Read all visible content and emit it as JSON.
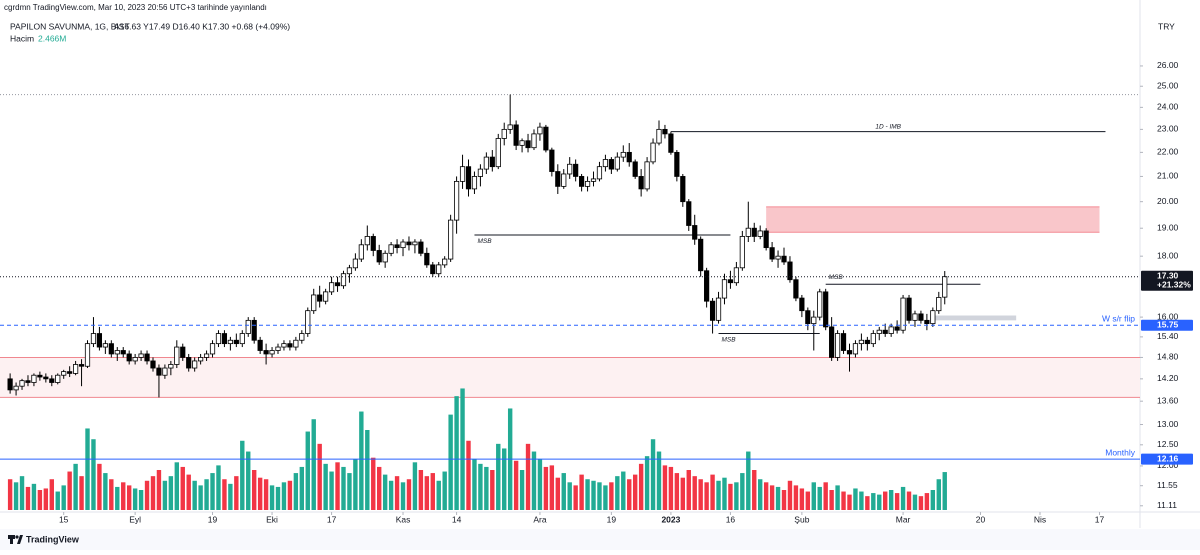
{
  "header": {
    "publisher": "cgrdmn TradingView.com, Mar 10, 2023 20:56 UTC+3 tarihinde yayınlandı",
    "symbol": "PAPILON SAVUNMA, 1G, BIST",
    "ohlc_text": "A16.63 Y17.49 D16.40 K17.30 +0.68 (+4.09%)",
    "volume_label": "Hacim",
    "volume_value": "2.466M",
    "currency": "TRY"
  },
  "chart_data": {
    "type": "candlestick",
    "log_scale": true,
    "up_color": "#ffffff",
    "down_color": "#000000",
    "ohlc": [
      [
        14.2,
        14.35,
        13.8,
        13.9
      ],
      [
        13.9,
        14.1,
        13.75,
        14.0
      ],
      [
        14.0,
        14.2,
        13.9,
        14.15
      ],
      [
        14.15,
        14.3,
        14.0,
        14.1
      ],
      [
        14.1,
        14.35,
        14.0,
        14.3
      ],
      [
        14.3,
        14.4,
        14.15,
        14.25
      ],
      [
        14.25,
        14.35,
        14.1,
        14.2
      ],
      [
        14.2,
        14.3,
        14.0,
        14.1
      ],
      [
        14.1,
        14.35,
        14.05,
        14.3
      ],
      [
        14.3,
        14.45,
        14.2,
        14.4
      ],
      [
        14.4,
        14.55,
        14.25,
        14.35
      ],
      [
        14.35,
        14.7,
        14.3,
        14.6
      ],
      [
        14.6,
        14.75,
        14.0,
        14.55
      ],
      [
        14.55,
        15.3,
        14.5,
        15.2
      ],
      [
        15.2,
        16.0,
        15.1,
        15.5
      ],
      [
        15.5,
        15.7,
        15.0,
        15.1
      ],
      [
        15.1,
        15.3,
        14.9,
        15.2
      ],
      [
        15.2,
        15.3,
        14.8,
        14.9
      ],
      [
        14.9,
        15.1,
        14.7,
        15.0
      ],
      [
        15.0,
        15.1,
        14.8,
        14.9
      ],
      [
        14.9,
        15.0,
        14.6,
        14.7
      ],
      [
        14.7,
        14.9,
        14.6,
        14.8
      ],
      [
        14.8,
        15.0,
        14.7,
        14.9
      ],
      [
        14.9,
        15.0,
        14.6,
        14.7
      ],
      [
        14.7,
        14.8,
        14.4,
        14.5
      ],
      [
        14.5,
        14.6,
        13.7,
        14.3
      ],
      [
        14.3,
        14.6,
        14.2,
        14.5
      ],
      [
        14.5,
        14.7,
        14.3,
        14.6
      ],
      [
        14.6,
        15.3,
        14.5,
        15.1
      ],
      [
        15.1,
        15.2,
        14.7,
        14.8
      ],
      [
        14.8,
        14.9,
        14.4,
        14.5
      ],
      [
        14.5,
        14.8,
        14.4,
        14.7
      ],
      [
        14.7,
        14.9,
        14.6,
        14.8
      ],
      [
        14.8,
        15.0,
        14.7,
        14.9
      ],
      [
        14.9,
        15.3,
        14.8,
        15.2
      ],
      [
        15.2,
        15.6,
        15.1,
        15.5
      ],
      [
        15.5,
        15.6,
        15.1,
        15.2
      ],
      [
        15.2,
        15.4,
        15.0,
        15.3
      ],
      [
        15.3,
        15.5,
        15.1,
        15.2
      ],
      [
        15.2,
        15.6,
        15.1,
        15.5
      ],
      [
        15.5,
        16.0,
        15.4,
        15.9
      ],
      [
        15.9,
        16.0,
        15.2,
        15.3
      ],
      [
        15.3,
        15.4,
        14.9,
        15.0
      ],
      [
        15.0,
        15.2,
        14.6,
        14.9
      ],
      [
        14.9,
        15.1,
        14.8,
        15.0
      ],
      [
        15.0,
        15.2,
        14.9,
        15.1
      ],
      [
        15.1,
        15.3,
        15.0,
        15.2
      ],
      [
        15.2,
        15.3,
        15.0,
        15.1
      ],
      [
        15.1,
        15.4,
        15.0,
        15.3
      ],
      [
        15.3,
        15.6,
        15.2,
        15.5
      ],
      [
        15.5,
        16.3,
        15.4,
        16.2
      ],
      [
        16.2,
        16.9,
        16.1,
        16.7
      ],
      [
        16.7,
        17.0,
        16.3,
        16.5
      ],
      [
        16.5,
        16.9,
        16.4,
        16.8
      ],
      [
        16.8,
        17.3,
        16.7,
        17.1
      ],
      [
        17.1,
        17.3,
        16.8,
        17.0
      ],
      [
        17.0,
        17.5,
        16.9,
        17.4
      ],
      [
        17.4,
        17.7,
        17.1,
        17.6
      ],
      [
        17.6,
        18.1,
        17.5,
        17.9
      ],
      [
        17.9,
        18.6,
        17.8,
        18.4
      ],
      [
        18.4,
        19.1,
        18.2,
        18.7
      ],
      [
        18.7,
        18.8,
        18.0,
        18.2
      ],
      [
        18.2,
        18.4,
        17.7,
        17.8
      ],
      [
        17.8,
        18.2,
        17.6,
        18.1
      ],
      [
        18.1,
        18.5,
        18.0,
        18.4
      ],
      [
        18.4,
        18.6,
        18.1,
        18.3
      ],
      [
        18.3,
        18.6,
        18.0,
        18.5
      ],
      [
        18.5,
        18.7,
        18.2,
        18.4
      ],
      [
        18.4,
        18.6,
        18.1,
        18.5
      ],
      [
        18.5,
        18.6,
        18.0,
        18.1
      ],
      [
        18.1,
        18.3,
        17.6,
        17.7
      ],
      [
        17.7,
        17.8,
        17.3,
        17.4
      ],
      [
        17.4,
        17.8,
        17.3,
        17.7
      ],
      [
        17.7,
        18.0,
        17.6,
        17.9
      ],
      [
        17.9,
        19.5,
        17.8,
        19.3
      ],
      [
        19.3,
        21.0,
        18.8,
        20.8
      ],
      [
        20.8,
        21.9,
        20.5,
        21.4
      ],
      [
        21.4,
        21.7,
        20.2,
        20.5
      ],
      [
        20.5,
        21.2,
        20.3,
        21.0
      ],
      [
        21.0,
        21.5,
        20.6,
        21.3
      ],
      [
        21.3,
        22.0,
        21.1,
        21.8
      ],
      [
        21.8,
        22.1,
        21.2,
        21.4
      ],
      [
        21.4,
        22.8,
        21.3,
        22.6
      ],
      [
        22.6,
        23.3,
        22.3,
        23.0
      ],
      [
        23.0,
        24.6,
        22.8,
        23.2
      ],
      [
        23.2,
        23.4,
        22.1,
        22.3
      ],
      [
        22.3,
        22.6,
        22.0,
        22.5
      ],
      [
        22.5,
        22.8,
        22.0,
        22.2
      ],
      [
        22.2,
        23.0,
        22.1,
        22.8
      ],
      [
        22.8,
        23.3,
        22.5,
        23.1
      ],
      [
        23.1,
        23.2,
        22.0,
        22.1
      ],
      [
        22.1,
        22.2,
        21.0,
        21.2
      ],
      [
        21.2,
        21.5,
        20.3,
        20.6
      ],
      [
        20.6,
        21.3,
        20.5,
        21.1
      ],
      [
        21.1,
        21.8,
        20.9,
        21.5
      ],
      [
        21.5,
        21.7,
        20.8,
        21.0
      ],
      [
        21.0,
        21.1,
        20.4,
        20.6
      ],
      [
        20.6,
        21.0,
        20.4,
        20.8
      ],
      [
        20.8,
        21.2,
        20.6,
        20.9
      ],
      [
        20.9,
        21.6,
        20.8,
        21.4
      ],
      [
        21.4,
        21.9,
        21.2,
        21.7
      ],
      [
        21.7,
        21.8,
        21.1,
        21.3
      ],
      [
        21.3,
        22.0,
        21.2,
        21.8
      ],
      [
        21.8,
        22.3,
        21.6,
        22.0
      ],
      [
        22.0,
        22.4,
        21.4,
        21.6
      ],
      [
        21.6,
        21.7,
        20.9,
        21.0
      ],
      [
        21.0,
        21.3,
        20.2,
        20.5
      ],
      [
        20.5,
        21.8,
        20.4,
        21.6
      ],
      [
        21.6,
        22.6,
        21.5,
        22.4
      ],
      [
        22.4,
        23.4,
        22.3,
        23.0
      ],
      [
        23.0,
        23.2,
        22.6,
        22.8
      ],
      [
        22.8,
        22.9,
        21.9,
        22.0
      ],
      [
        22.0,
        22.1,
        20.8,
        21.0
      ],
      [
        21.0,
        21.1,
        19.8,
        20.0
      ],
      [
        20.0,
        20.1,
        18.9,
        19.1
      ],
      [
        19.1,
        19.5,
        18.4,
        18.6
      ],
      [
        18.6,
        18.7,
        17.3,
        17.5
      ],
      [
        17.5,
        17.6,
        16.3,
        16.5
      ],
      [
        16.5,
        16.6,
        15.5,
        15.9
      ],
      [
        15.9,
        16.8,
        15.8,
        16.6
      ],
      [
        16.6,
        17.4,
        16.4,
        17.2
      ],
      [
        17.2,
        17.5,
        16.9,
        17.1
      ],
      [
        17.1,
        17.8,
        17.0,
        17.6
      ],
      [
        17.6,
        18.9,
        17.5,
        18.7
      ],
      [
        18.7,
        20.0,
        18.5,
        19.0
      ],
      [
        19.0,
        19.2,
        18.5,
        18.7
      ],
      [
        18.7,
        19.1,
        18.6,
        18.9
      ],
      [
        18.9,
        19.0,
        18.2,
        18.3
      ],
      [
        18.3,
        18.5,
        17.8,
        17.9
      ],
      [
        17.9,
        18.2,
        17.6,
        18.0
      ],
      [
        18.0,
        18.3,
        17.7,
        17.8
      ],
      [
        17.8,
        18.0,
        17.1,
        17.2
      ],
      [
        17.2,
        17.3,
        16.5,
        16.6
      ],
      [
        16.6,
        16.7,
        16.0,
        16.2
      ],
      [
        16.2,
        16.3,
        15.6,
        15.8
      ],
      [
        15.8,
        16.2,
        15.0,
        16.0
      ],
      [
        16.0,
        16.9,
        15.9,
        16.8
      ],
      [
        16.8,
        16.9,
        15.6,
        15.7
      ],
      [
        15.7,
        16.0,
        14.7,
        14.8
      ],
      [
        14.8,
        15.6,
        14.7,
        15.5
      ],
      [
        15.5,
        15.6,
        14.9,
        15.0
      ],
      [
        15.0,
        15.2,
        14.4,
        14.9
      ],
      [
        14.9,
        15.3,
        14.8,
        15.2
      ],
      [
        15.2,
        15.5,
        15.0,
        15.3
      ],
      [
        15.3,
        15.4,
        15.0,
        15.2
      ],
      [
        15.2,
        15.6,
        15.1,
        15.5
      ],
      [
        15.5,
        15.7,
        15.3,
        15.6
      ],
      [
        15.6,
        15.8,
        15.4,
        15.5
      ],
      [
        15.5,
        15.8,
        15.4,
        15.7
      ],
      [
        15.7,
        15.9,
        15.5,
        15.6
      ],
      [
        15.6,
        16.7,
        15.5,
        16.6
      ],
      [
        16.6,
        16.7,
        15.8,
        15.9
      ],
      [
        15.9,
        16.2,
        15.7,
        16.1
      ],
      [
        16.1,
        16.2,
        15.8,
        15.9
      ],
      [
        15.9,
        16.1,
        15.6,
        15.8
      ],
      [
        15.8,
        16.3,
        15.7,
        16.2
      ],
      [
        16.2,
        16.8,
        16.1,
        16.62
      ],
      [
        16.63,
        17.49,
        16.4,
        17.3
      ]
    ],
    "volume": {
      "up_color": "#22ab94",
      "down_color": "#f23645",
      "values": [
        2.0,
        1.8,
        2.2,
        1.5,
        1.7,
        1.3,
        1.4,
        2.0,
        1.2,
        1.6,
        2.5,
        3.0,
        2.2,
        5.3,
        4.6,
        3.0,
        2.4,
        2.0,
        1.5,
        1.8,
        1.6,
        1.4,
        1.3,
        1.9,
        2.2,
        2.6,
        1.9,
        2.2,
        3.1,
        2.8,
        2.3,
        1.9,
        1.6,
        2.0,
        2.4,
        2.9,
        2.0,
        1.7,
        2.2,
        4.5,
        3.8,
        2.6,
        2.1,
        2.0,
        1.6,
        1.5,
        1.8,
        1.9,
        2.4,
        2.8,
        5.1,
        5.9,
        4.3,
        3.0,
        2.5,
        3.1,
        2.8,
        2.4,
        3.3,
        6.4,
        5.2,
        3.4,
        2.8,
        2.3,
        1.9,
        2.2,
        1.8,
        2.0,
        3.1,
        2.6,
        2.2,
        2.4,
        1.9,
        2.5,
        6.2,
        7.4,
        7.9,
        4.5,
        3.3,
        3.0,
        2.8,
        2.6,
        4.3,
        4.0,
        6.6,
        3.2,
        2.6,
        4.3,
        3.8,
        3.3,
        2.8,
        2.9,
        2.1,
        2.4,
        1.8,
        1.6,
        2.3,
        2.0,
        1.9,
        1.8,
        1.6,
        1.8,
        2.2,
        2.5,
        2.0,
        2.3,
        3.0,
        3.5,
        4.6,
        3.8,
        2.9,
        2.8,
        2.4,
        2.1,
        2.6,
        2.2,
        2.0,
        1.8,
        2.3,
        1.9,
        2.1,
        1.7,
        1.8,
        2.4,
        3.8,
        2.6,
        2.0,
        1.8,
        1.6,
        1.5,
        1.3,
        1.9,
        1.6,
        1.4,
        1.2,
        1.8,
        1.5,
        1.8,
        1.3,
        1.6,
        1.2,
        1.0,
        1.4,
        1.2,
        0.9,
        1.1,
        1.0,
        1.2,
        1.3,
        1.1,
        1.5,
        1.2,
        1.0,
        0.9,
        1.1,
        1.3,
        2.0,
        2.466
      ]
    },
    "vlim": [
      0,
      32.5
    ],
    "ylim": [
      11.02,
      28.97
    ],
    "yticks": [
      {
        "value": 11.11,
        "label": "11.11"
      },
      {
        "value": 11.55,
        "label": "11.55"
      },
      {
        "value": 12,
        "label": "12.00"
      },
      {
        "value": 12.5,
        "label": "12.50"
      },
      {
        "value": 13,
        "label": "13.00"
      },
      {
        "value": 13.6,
        "label": "13.60"
      },
      {
        "value": 14.2,
        "label": "14.20"
      },
      {
        "value": 14.8,
        "label": "14.80"
      },
      {
        "value": 15.4,
        "label": "15.40"
      },
      {
        "value": 16,
        "label": "16.00"
      },
      {
        "value": 18,
        "label": "18.00"
      },
      {
        "value": 19,
        "label": "19.00"
      },
      {
        "value": 20,
        "label": "20.00"
      },
      {
        "value": 21,
        "label": "21.00"
      },
      {
        "value": 22,
        "label": "22.00"
      },
      {
        "value": 23,
        "label": "23.00"
      },
      {
        "value": 24,
        "label": "24.00"
      },
      {
        "value": 25,
        "label": "25.00"
      },
      {
        "value": 26,
        "label": "26.00"
      }
    ],
    "xlim": [
      -1.7,
      189.8
    ],
    "xticks": [
      {
        "value": 9,
        "label": "15"
      },
      {
        "value": 21,
        "label": "Eyl"
      },
      {
        "value": 34,
        "label": "19"
      },
      {
        "value": 44,
        "label": "Eki"
      },
      {
        "value": 54,
        "label": "17"
      },
      {
        "value": 66,
        "label": "Kas"
      },
      {
        "value": 75,
        "label": "14"
      },
      {
        "value": 89,
        "label": "Ara"
      },
      {
        "value": 101,
        "label": "19"
      },
      {
        "value": 111,
        "label": "2023"
      },
      {
        "value": 121,
        "label": "16"
      },
      {
        "value": 133,
        "label": "Şub"
      },
      {
        "value": 150,
        "label": "Mar"
      },
      {
        "value": 163,
        "label": "20"
      },
      {
        "value": 173,
        "label": "Nis"
      },
      {
        "value": 183,
        "label": "17"
      }
    ],
    "zones": [
      {
        "y": [
          13.7,
          14.8
        ],
        "fill": "#fdf1f2",
        "edge": "#f0878f"
      },
      {
        "x": [
          127,
          183
        ],
        "y": [
          18.85,
          19.8
        ],
        "fill": "#f9c6ca",
        "edge": "#f48a93"
      },
      {
        "x": [
          155,
          169
        ],
        "y": [
          15.9,
          16.05
        ],
        "fill": "#d1d4dc"
      }
    ],
    "lines": [
      {
        "y": 24.6,
        "color": "#9598a1",
        "style": "dotted"
      },
      {
        "y": 22.9,
        "x": [
          111,
          184
        ],
        "label": "1D - IMB",
        "color": "#131722"
      },
      {
        "y": 18.75,
        "x": [
          78,
          121
        ],
        "label": "MSB",
        "color": "#131722"
      },
      {
        "y": 15.5,
        "x": [
          119,
          136
        ],
        "label": "MSB",
        "color": "#131722"
      },
      {
        "y": 17.05,
        "x": [
          137,
          163
        ],
        "label": "MSB",
        "color": "#131722"
      }
    ],
    "levels": [
      {
        "value": {
          "value": 17.3,
          "label": "17.30"
        },
        "note": "+21.32%",
        "color": "#131722",
        "style": "dotted"
      },
      {
        "value": 15.75,
        "text": "W s/r flip",
        "color": "#2962ff",
        "style": "dashed"
      },
      {
        "value": 12.16,
        "text": "Monthly",
        "color": "#2962ff",
        "style": "solid"
      }
    ]
  },
  "footer": {
    "brand": "TradingView"
  }
}
